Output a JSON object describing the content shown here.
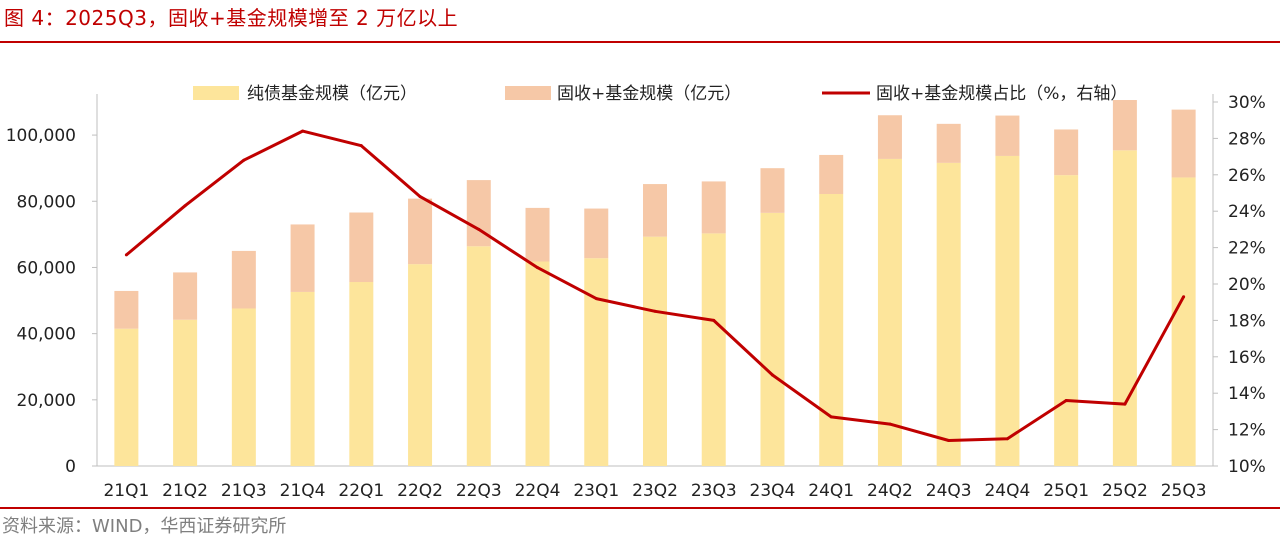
{
  "header": {
    "title": "图 4：2025Q3，固收+基金规模增至 2 万亿以上"
  },
  "footer": {
    "source": "资料来源：WIND，华西证券研究所"
  },
  "colors": {
    "accent": "#c00000",
    "pure_bond": "#fde59b",
    "fixed_income_plus": "#f6c8a7",
    "line": "#c00000"
  },
  "chart_data": {
    "type": "bar",
    "stacked": true,
    "categories": [
      "21Q1",
      "21Q2",
      "21Q3",
      "21Q4",
      "22Q1",
      "22Q2",
      "22Q3",
      "22Q4",
      "23Q1",
      "23Q2",
      "23Q3",
      "23Q4",
      "24Q1",
      "24Q2",
      "24Q3",
      "24Q4",
      "25Q1",
      "25Q2",
      "25Q3"
    ],
    "series": [
      {
        "name": "纯债基金规模（亿元）",
        "type": "bar",
        "axis": "left",
        "values": [
          41500,
          44200,
          47600,
          52600,
          55600,
          61000,
          66400,
          61800,
          62800,
          69300,
          70300,
          76500,
          82200,
          92800,
          91600,
          93700,
          87900,
          95400,
          87200
        ]
      },
      {
        "name": "固收+基金规模（亿元）",
        "type": "bar",
        "axis": "left",
        "values": [
          11400,
          14300,
          17400,
          20400,
          21000,
          19800,
          20000,
          16200,
          15000,
          15900,
          15700,
          13500,
          11800,
          13200,
          11800,
          12200,
          13800,
          15200,
          20500
        ]
      },
      {
        "name": "固收+基金规模占比（%，右轴）",
        "type": "line",
        "axis": "right",
        "values": [
          21.6,
          24.3,
          26.8,
          28.4,
          27.6,
          24.8,
          23.0,
          20.9,
          19.2,
          18.5,
          18.0,
          15.0,
          12.7,
          12.3,
          11.4,
          11.5,
          13.6,
          13.4,
          19.3
        ]
      }
    ],
    "y_left": {
      "min": 0,
      "max": 110000,
      "ticks": [
        0,
        20000,
        40000,
        60000,
        80000,
        100000
      ],
      "tick_labels": [
        "0",
        "20,000",
        "40,000",
        "60,000",
        "80,000",
        "100,000"
      ]
    },
    "y_right": {
      "min": 10,
      "max": 30,
      "ticks": [
        10,
        12,
        14,
        16,
        18,
        20,
        22,
        24,
        26,
        28,
        30
      ],
      "tick_labels": [
        "10%",
        "12%",
        "14%",
        "16%",
        "18%",
        "20%",
        "22%",
        "24%",
        "26%",
        "28%",
        "30%"
      ]
    },
    "grid": false,
    "legend_position": "top"
  }
}
